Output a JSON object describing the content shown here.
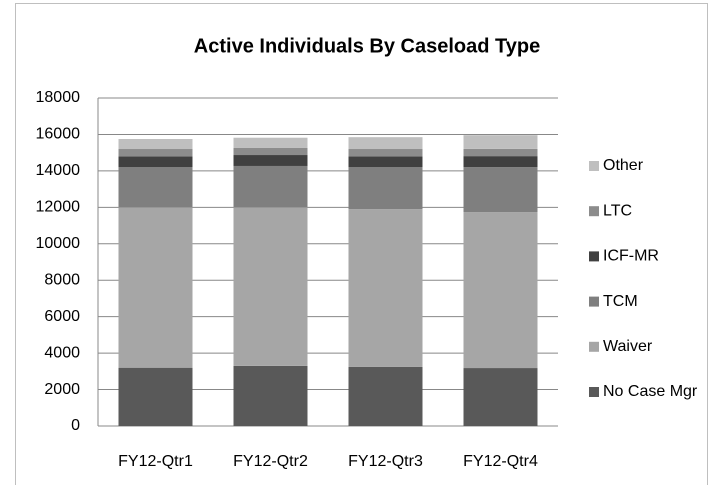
{
  "chart_data": {
    "type": "stacked_bar",
    "title": "Active Individuals By Caseload Type",
    "categories": [
      "FY12-Qtr1",
      "FY12-Qtr2",
      "FY12-Qtr3",
      "FY12-Qtr4"
    ],
    "series": [
      {
        "name": "No Case Mgr",
        "color": "#595959",
        "values": [
          3200,
          3300,
          3250,
          3180
        ]
      },
      {
        "name": "Waiver",
        "color": "#a6a6a6",
        "values": [
          8800,
          8700,
          8650,
          8560
        ]
      },
      {
        "name": "TCM",
        "color": "#7f7f7f",
        "values": [
          2200,
          2270,
          2300,
          2470
        ]
      },
      {
        "name": "ICF-MR",
        "color": "#404040",
        "values": [
          600,
          600,
          600,
          600
        ]
      },
      {
        "name": "LTC",
        "color": "#8c8c8c",
        "values": [
          400,
          400,
          400,
          400
        ]
      },
      {
        "name": "Other",
        "color": "#bfbfbf",
        "values": [
          550,
          550,
          650,
          750
        ]
      }
    ],
    "ylim": [
      0,
      18000
    ],
    "yticks": [
      0,
      2000,
      4000,
      6000,
      8000,
      10000,
      12000,
      14000,
      16000,
      18000
    ],
    "grid": true,
    "legend": "right"
  }
}
